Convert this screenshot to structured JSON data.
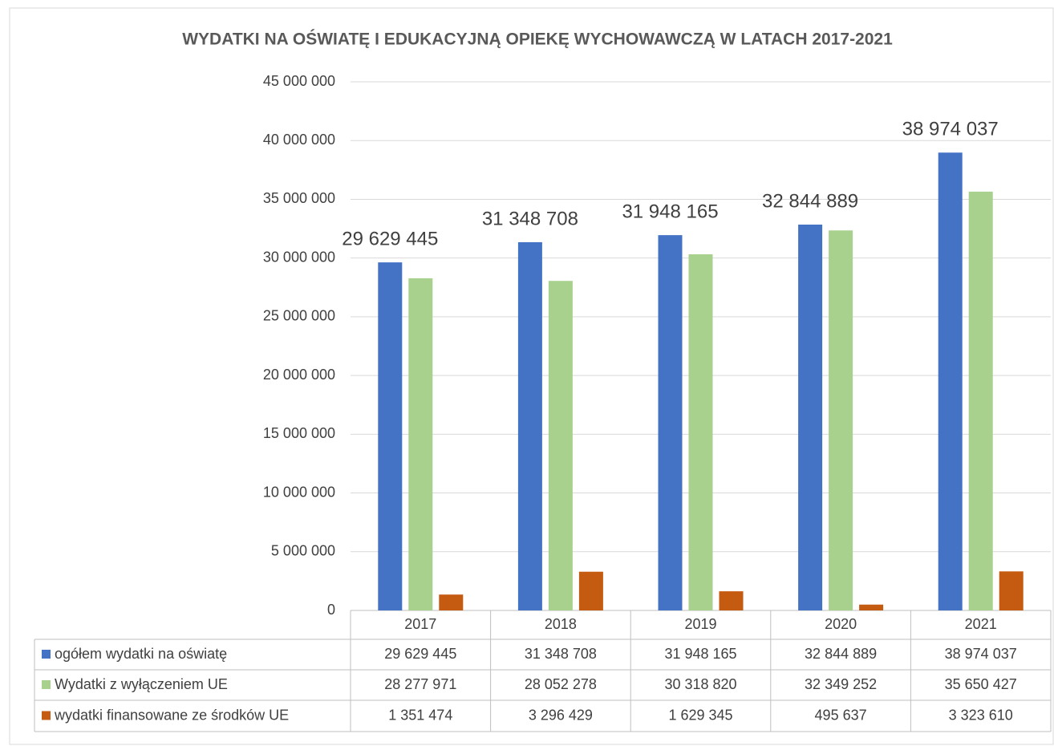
{
  "chart_data": {
    "type": "bar",
    "title": "WYDATKI NA OŚWIATĘ I EDUKACYJNĄ OPIEKĘ WYCHOWAWCZĄ W LATACH 2017-2021",
    "categories": [
      "2017",
      "2018",
      "2019",
      "2020",
      "2021"
    ],
    "series": [
      {
        "name": "ogółem wydatki na oświatę",
        "color": "#4472c4",
        "values": [
          29629445,
          31348708,
          31948165,
          32844889,
          38974037
        ],
        "value_labels": [
          "29 629 445",
          "31 348 708",
          "31 948 165",
          "32 844 889",
          "38 974 037"
        ]
      },
      {
        "name": "Wydatki z wyłączeniem UE",
        "color": "#a9d18e",
        "values": [
          28277971,
          28052278,
          30318820,
          32349252,
          35650427
        ],
        "value_labels": [
          "28 277 971",
          "28 052 278",
          "30 318 820",
          "32 349 252",
          "35 650 427"
        ]
      },
      {
        "name": "wydatki finansowane ze środków UE",
        "color": "#c55a11",
        "values": [
          1351474,
          3296429,
          1629345,
          495637,
          3323610
        ],
        "value_labels": [
          "1 351 474",
          "3 296 429",
          "1 629 345",
          "495 637",
          "3 323 610"
        ]
      }
    ],
    "ylim": [
      0,
      45000000
    ],
    "yticks": [
      0,
      {
        "value": 5000000,
        "label": "5 000 000"
      },
      {
        "value": 10000000,
        "label": "10 000 000"
      },
      {
        "value": 15000000,
        "label": "15 000 000"
      },
      {
        "value": 20000000,
        "label": "20 000 000"
      },
      {
        "value": 25000000,
        "label": "25 000 000"
      },
      {
        "value": 30000000,
        "label": "30 000 000"
      },
      {
        "value": 35000000,
        "label": "35 000 000"
      },
      {
        "value": 40000000,
        "label": "40 000 000"
      },
      {
        "value": 45000000,
        "label": "45 000 000"
      }
    ],
    "grid": true
  }
}
